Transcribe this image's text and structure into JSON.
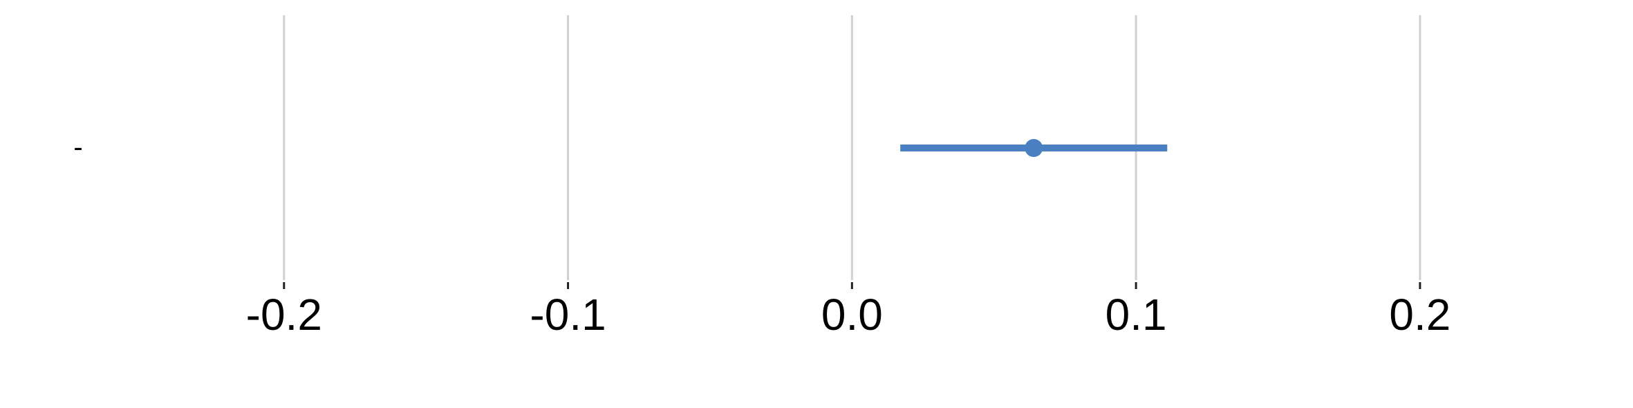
{
  "chart_data": {
    "type": "scatter",
    "title": "",
    "xlabel": "",
    "ylabel": "",
    "xlim": [
      -0.3,
      0.275
    ],
    "x_ticks": [
      {
        "value": -0.2,
        "label": "-0.2"
      },
      {
        "value": -0.1,
        "label": "-0.1"
      },
      {
        "value": 0.0,
        "label": "0.0"
      },
      {
        "value": 0.1,
        "label": "0.1"
      },
      {
        "value": 0.2,
        "label": "0.2"
      }
    ],
    "grid": "vertical",
    "legend": "none",
    "rows": [
      {
        "label": "-",
        "estimate": 0.064,
        "ci_low": 0.017,
        "ci_high": 0.111
      }
    ],
    "color": "#4a7fc1"
  }
}
